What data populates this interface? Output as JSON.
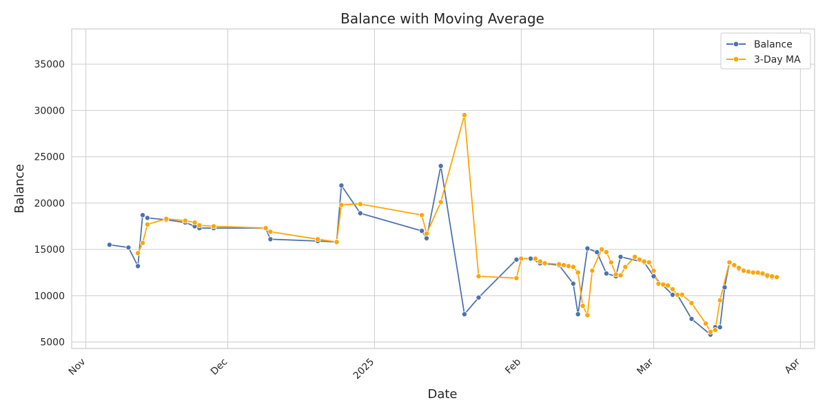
{
  "chart_data": {
    "type": "line",
    "title": "Balance with Moving Average",
    "xlabel": "Date",
    "ylabel": "Balance",
    "x_range": [
      "2024-10-29",
      "2025-04-04"
    ],
    "ylim": [
      4300,
      38800
    ],
    "grid": true,
    "legend_position": "top-right",
    "x_ticks": [
      {
        "date": "2024-11-01",
        "label": "Nov"
      },
      {
        "date": "2024-12-01",
        "label": "Dec"
      },
      {
        "date": "2025-01-01",
        "label": "2025"
      },
      {
        "date": "2025-02-01",
        "label": "Feb"
      },
      {
        "date": "2025-03-01",
        "label": "Mar"
      },
      {
        "date": "2025-04-01",
        "label": "Apr"
      }
    ],
    "y_ticks": [
      5000,
      10000,
      15000,
      20000,
      25000,
      30000,
      35000
    ],
    "series": [
      {
        "name": "Balance",
        "color": "#4c72b0",
        "points": [
          [
            "2024-11-06",
            15500
          ],
          [
            "2024-11-10",
            15200
          ],
          [
            "2024-11-12",
            13200
          ],
          [
            "2024-11-13",
            18700
          ],
          [
            "2024-11-14",
            18400
          ],
          [
            "2024-11-18",
            18200
          ],
          [
            "2024-11-22",
            17900
          ],
          [
            "2024-11-24",
            17500
          ],
          [
            "2024-11-25",
            17300
          ],
          [
            "2024-11-28",
            17300
          ],
          [
            "2024-12-09",
            17300
          ],
          [
            "2024-12-10",
            16100
          ],
          [
            "2024-12-20",
            15900
          ],
          [
            "2024-12-24",
            15800
          ],
          [
            "2024-12-25",
            21900
          ],
          [
            "2024-12-29",
            18900
          ],
          [
            "2025-01-11",
            17000
          ],
          [
            "2025-01-12",
            16200
          ],
          [
            "2025-01-15",
            24000
          ],
          [
            "2025-01-20",
            8000
          ],
          [
            "2025-01-23",
            9800
          ],
          [
            "2025-01-31",
            13900
          ],
          [
            "2025-02-01",
            14000
          ],
          [
            "2025-02-03",
            14000
          ],
          [
            "2025-02-05",
            13500
          ],
          [
            "2025-02-09",
            13300
          ],
          [
            "2025-02-12",
            11300
          ],
          [
            "2025-02-13",
            8000
          ],
          [
            "2025-02-15",
            15100
          ],
          [
            "2025-02-17",
            14700
          ],
          [
            "2025-02-19",
            12400
          ],
          [
            "2025-02-21",
            12100
          ],
          [
            "2025-02-22",
            14200
          ],
          [
            "2025-02-27",
            13600
          ],
          [
            "2025-03-01",
            12100
          ],
          [
            "2025-03-05",
            10100
          ],
          [
            "2025-03-06",
            10100
          ],
          [
            "2025-03-09",
            7500
          ],
          [
            "2025-03-13",
            5800
          ],
          [
            "2025-03-14",
            6600
          ],
          [
            "2025-03-15",
            6600
          ],
          [
            "2025-03-16",
            10900
          ],
          [
            "2025-03-17",
            13600
          ],
          [
            "2025-03-19",
            12900
          ],
          [
            "2025-03-22",
            12500
          ],
          [
            "2025-03-25",
            12100
          ],
          [
            "2025-03-26",
            12000
          ]
        ]
      },
      {
        "name": "3-Day MA",
        "color": "#ffa500",
        "points": [
          [
            "2024-11-12",
            14600
          ],
          [
            "2024-11-13",
            15700
          ],
          [
            "2024-11-14",
            17700
          ],
          [
            "2024-11-18",
            18300
          ],
          [
            "2024-11-22",
            18100
          ],
          [
            "2024-11-24",
            17900
          ],
          [
            "2024-11-25",
            17600
          ],
          [
            "2024-11-28",
            17500
          ],
          [
            "2024-12-09",
            17300
          ],
          [
            "2024-12-10",
            16900
          ],
          [
            "2024-12-20",
            16100
          ],
          [
            "2024-12-24",
            15800
          ],
          [
            "2024-12-25",
            19800
          ],
          [
            "2024-12-29",
            19900
          ],
          [
            "2025-01-11",
            18700
          ],
          [
            "2025-01-12",
            16700
          ],
          [
            "2025-01-15",
            20100
          ],
          [
            "2025-01-20",
            29500
          ],
          [
            "2025-01-23",
            12100
          ],
          [
            "2025-01-31",
            11900
          ],
          [
            "2025-02-01",
            14000
          ],
          [
            "2025-02-04",
            14000
          ],
          [
            "2025-02-05",
            13700
          ],
          [
            "2025-02-06",
            13500
          ],
          [
            "2025-02-09",
            13400
          ],
          [
            "2025-02-10",
            13300
          ],
          [
            "2025-02-11",
            13200
          ],
          [
            "2025-02-12",
            13100
          ],
          [
            "2025-02-13",
            12500
          ],
          [
            "2025-02-14",
            8900
          ],
          [
            "2025-02-15",
            7900
          ],
          [
            "2025-02-16",
            12700
          ],
          [
            "2025-02-18",
            15000
          ],
          [
            "2025-02-19",
            14700
          ],
          [
            "2025-02-20",
            13600
          ],
          [
            "2025-02-21",
            12300
          ],
          [
            "2025-02-22",
            12200
          ],
          [
            "2025-02-23",
            13100
          ],
          [
            "2025-02-25",
            14200
          ],
          [
            "2025-02-26",
            13900
          ],
          [
            "2025-02-27",
            13700
          ],
          [
            "2025-02-28",
            13600
          ],
          [
            "2025-03-01",
            12700
          ],
          [
            "2025-03-02",
            11300
          ],
          [
            "2025-03-03",
            11200
          ],
          [
            "2025-03-04",
            11100
          ],
          [
            "2025-03-05",
            10700
          ],
          [
            "2025-03-06",
            10100
          ],
          [
            "2025-03-07",
            10100
          ],
          [
            "2025-03-09",
            9200
          ],
          [
            "2025-03-12",
            7000
          ],
          [
            "2025-03-13",
            6100
          ],
          [
            "2025-03-14",
            6300
          ],
          [
            "2025-03-15",
            9500
          ],
          [
            "2025-03-17",
            13600
          ],
          [
            "2025-03-18",
            13300
          ],
          [
            "2025-03-19",
            13000
          ],
          [
            "2025-03-20",
            12700
          ],
          [
            "2025-03-21",
            12600
          ],
          [
            "2025-03-22",
            12500
          ],
          [
            "2025-03-23",
            12500
          ],
          [
            "2025-03-24",
            12400
          ],
          [
            "2025-03-25",
            12200
          ],
          [
            "2025-03-26",
            12100
          ],
          [
            "2025-03-27",
            12000
          ]
        ]
      }
    ]
  }
}
